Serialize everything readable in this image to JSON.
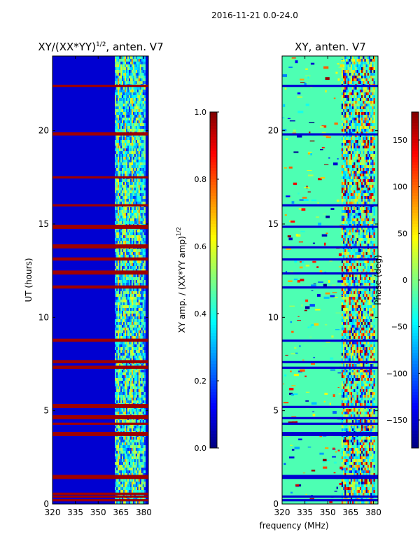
{
  "figure": {
    "suptitle": "2016-11-21 0.0-24.0",
    "shared_xlabel": "frequency (MHz)"
  },
  "chart_data": [
    {
      "type": "heatmap",
      "title_main": "XY/(XX*YY)",
      "title_sup": "1/2",
      "title_tail": ", anten. V7",
      "xlabel": "",
      "ylabel": "UT (hours)",
      "xlim": [
        320,
        383
      ],
      "ylim": [
        0,
        24
      ],
      "xticks": [
        "320",
        "335",
        "350",
        "365",
        "380"
      ],
      "xtick_values": [
        320,
        335,
        350,
        365,
        380
      ],
      "yticks": [
        "0",
        "5",
        "10",
        "15",
        "20"
      ],
      "ytick_values": [
        0,
        5,
        10,
        15,
        20
      ],
      "colorscale": "jet",
      "colorbar": {
        "label_main": "XY amp. / (XX*YY amp)",
        "label_sup": "1/2",
        "range": [
          0.0,
          1.0
        ],
        "ticks": [
          "0.0",
          "0.2",
          "0.4",
          "0.6",
          "0.8",
          "1.0"
        ],
        "tick_values": [
          0.0,
          0.2,
          0.4,
          0.6,
          0.8,
          1.0
        ]
      },
      "background_value": 0.08,
      "active_band_mhz": [
        361,
        381
      ],
      "flagged_hours": [
        0.2,
        0.4,
        0.55,
        1.4,
        1.5,
        3.7,
        3.8,
        4.3,
        4.6,
        4.7,
        5.2,
        5.3,
        7.3,
        7.35,
        7.6,
        7.65,
        8.75,
        8.8,
        11.6,
        11.65,
        12.35,
        12.4,
        12.45,
        13.1,
        13.15,
        13.75,
        13.85,
        14.8,
        14.85,
        14.9,
        16.0,
        17.5,
        19.8,
        19.85,
        22.4
      ]
    },
    {
      "type": "heatmap",
      "title_main": "XY, anten. V7",
      "xlabel": "frequency (MHz)",
      "ylabel": "",
      "xlim": [
        320,
        383
      ],
      "ylim": [
        0,
        24
      ],
      "xticks": [
        "320",
        "335",
        "350",
        "365",
        "380"
      ],
      "xtick_values": [
        320,
        335,
        350,
        365,
        380
      ],
      "yticks": [
        "0",
        "5",
        "10",
        "15",
        "20"
      ],
      "ytick_values": [
        0,
        5,
        10,
        15,
        20
      ],
      "colorscale": "jet",
      "colorbar": {
        "label_main": "Phase (deg)",
        "range": [
          -180,
          180
        ],
        "ticks": [
          "−150",
          "−100",
          "−50",
          "0",
          "50",
          "100",
          "150"
        ],
        "tick_values": [
          -150,
          -100,
          -50,
          0,
          50,
          100,
          150
        ]
      },
      "background_value": 0.45,
      "active_band_mhz": [
        359,
        381
      ],
      "flagged_hours": [
        0.2,
        0.4,
        1.4,
        1.5,
        3.7,
        3.8,
        4.3,
        4.6,
        5.2,
        7.3,
        7.6,
        8.75,
        11.6,
        12.35,
        13.1,
        13.75,
        14.85,
        16.0,
        19.8,
        22.4
      ]
    }
  ]
}
